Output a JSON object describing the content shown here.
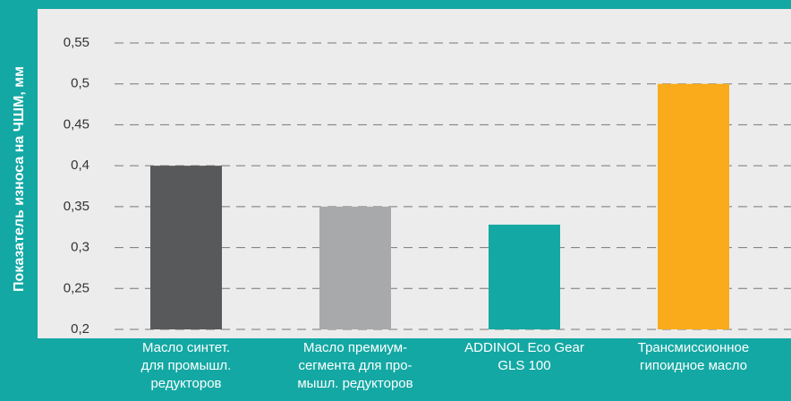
{
  "chart_data": {
    "type": "bar",
    "y_label": "Показатель износа на ЧШМ, мм",
    "categories": [
      [
        "Масло синтет.",
        "для промышл.",
        "редукторов"
      ],
      [
        "Масло премиум-",
        "сегмента для про-",
        "мышл. редукторов"
      ],
      [
        "ADDINOL Eco Gear",
        "GLS 100"
      ],
      [
        "Трансмиссионное",
        "гипоидное масло"
      ]
    ],
    "values": [
      0.4,
      0.35,
      0.328,
      0.5
    ],
    "colors": [
      "#58595b",
      "#a7a9ab",
      "#14a8a4",
      "#f9ab1b"
    ],
    "ylim": [
      0.2,
      0.59
    ],
    "yticks": [
      {
        "value": 0.2,
        "label": "0,2"
      },
      {
        "value": 0.25,
        "label": "0,25"
      },
      {
        "value": 0.3,
        "label": "0,3"
      },
      {
        "value": 0.35,
        "label": "0,35"
      },
      {
        "value": 0.4,
        "label": "0,4"
      },
      {
        "value": 0.45,
        "label": "0,45"
      },
      {
        "value": 0.5,
        "label": "0,5"
      },
      {
        "value": 0.55,
        "label": "0,55"
      }
    ],
    "grid": true
  }
}
